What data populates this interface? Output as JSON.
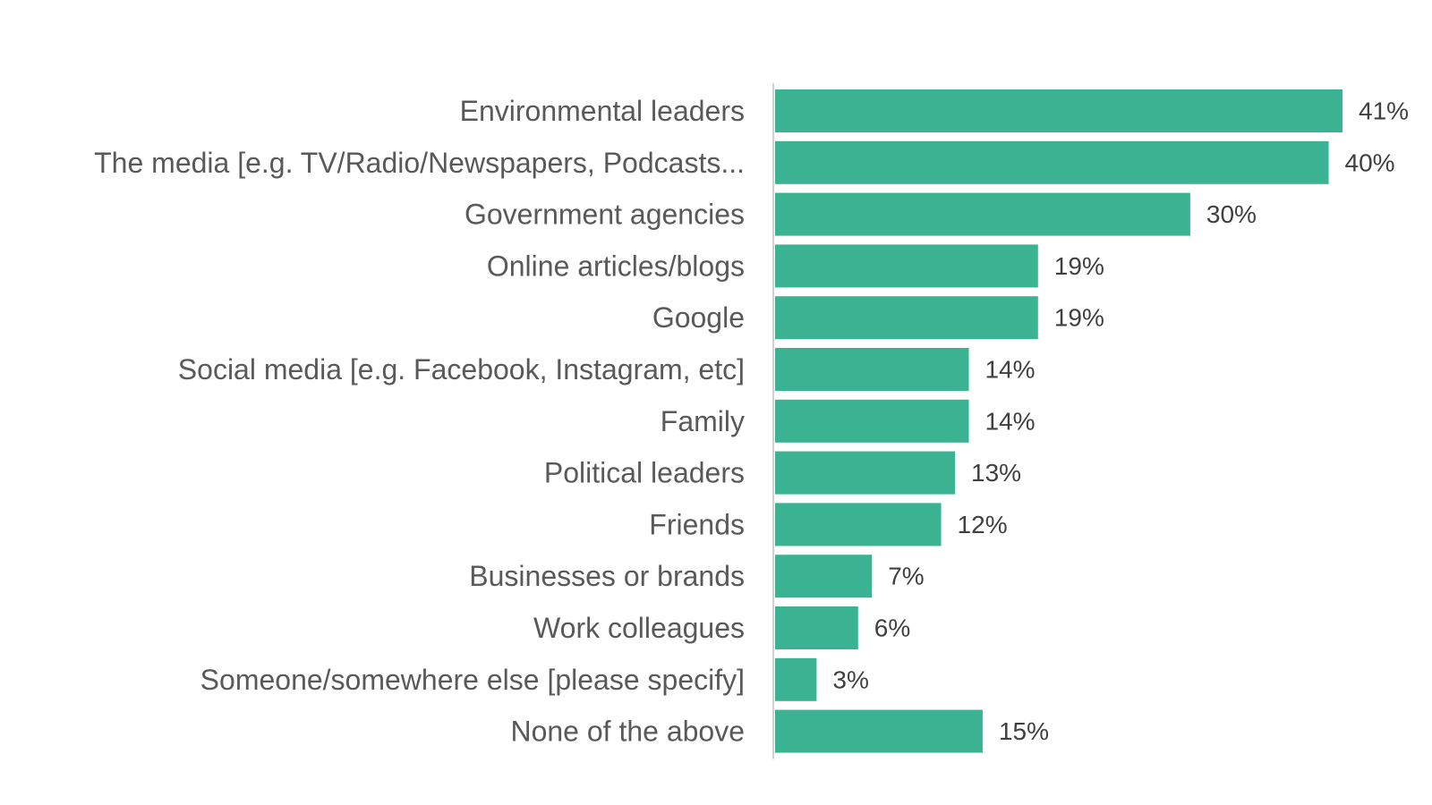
{
  "chart_data": {
    "type": "bar",
    "orientation": "horizontal",
    "title": "",
    "xlabel": "",
    "ylabel": "",
    "xlim": [
      0,
      41
    ],
    "grid": false,
    "legend": "none",
    "bar_color": "#3bb393",
    "axis_color": "#d0d0d0",
    "categories": [
      "Environmental leaders",
      "The media [e.g. TV/Radio/Newspapers, Podcasts...",
      "Government agencies",
      "Online articles/blogs",
      "Google",
      "Social media [e.g. Facebook, Instagram, etc]",
      "Family",
      "Political leaders",
      "Friends",
      "Businesses or brands",
      "Work colleagues",
      "Someone/somewhere else [please specify]",
      "None of the above"
    ],
    "values": [
      41,
      40,
      30,
      19,
      19,
      14,
      14,
      13,
      12,
      7,
      6,
      3,
      15
    ],
    "value_labels": [
      "41%",
      "40%",
      "30%",
      "19%",
      "19%",
      "14%",
      "14%",
      "13%",
      "12%",
      "7%",
      "6%",
      "3%",
      "15%"
    ]
  }
}
